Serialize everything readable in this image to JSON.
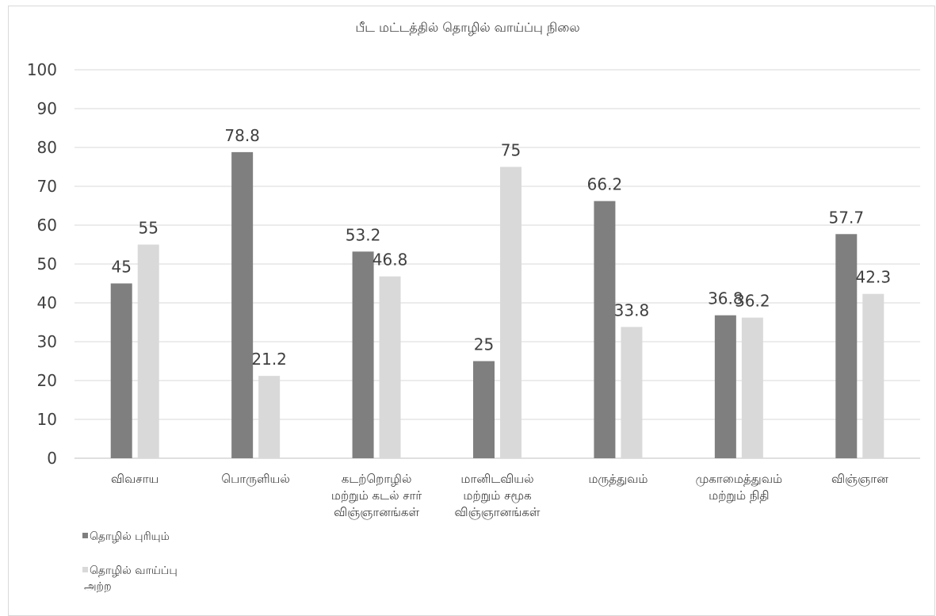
{
  "chart_data": {
    "type": "bar",
    "title": "பீட மட்டத்தில் தொழில் வாய்ப்பு நிலை",
    "xlabel": "",
    "ylabel": "",
    "ylim": [
      0,
      100
    ],
    "yticks": [
      "0",
      "10",
      "20",
      "30",
      "40",
      "50",
      "60",
      "70",
      "80",
      "90",
      "100"
    ],
    "grid": true,
    "legend_position": "bottom-left",
    "categories": [
      [
        "விவசாய"
      ],
      [
        "பொருளியல்"
      ],
      [
        "கடற்றொழில்",
        "மற்றும் கடல் சார்",
        "விஞ்ஞானங்கள்"
      ],
      [
        "மானிடவியல்",
        "மற்றும் சமூக",
        "விஞ்ஞானங்கள்"
      ],
      [
        "மருத்துவம்"
      ],
      [
        "முகாமைத்துவம்",
        "மற்றும் நிதி"
      ],
      [
        "விஞ்ஞான"
      ]
    ],
    "series": [
      {
        "name": [
          "தொழில் புரியும்"
        ],
        "color": "#7f7f7f",
        "values": [
          45,
          78.8,
          53.2,
          25,
          66.2,
          36.8,
          57.7
        ],
        "labels": [
          "45",
          "78.8",
          "53.2",
          "25",
          "66.2",
          "36.8",
          "57.7"
        ]
      },
      {
        "name": [
          "தொழில் வாய்ப்பு",
          "அற்ற"
        ],
        "color": "#d9d9d9",
        "values": [
          55,
          21.2,
          46.8,
          75,
          33.8,
          36.2,
          42.3
        ],
        "labels": [
          "55",
          "21.2",
          "46.8",
          "75",
          "33.8",
          "36.2",
          "42.3"
        ]
      }
    ]
  }
}
